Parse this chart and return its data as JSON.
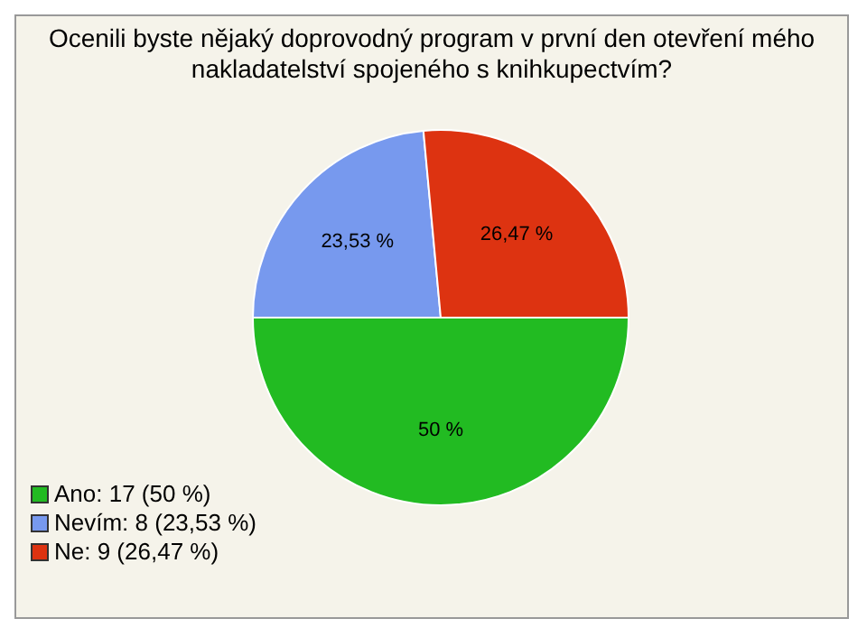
{
  "chart_data": {
    "type": "pie",
    "title": "Ocenili byste nějaký doprovodný program v první den otevření mého nakladatelství spojeného s knihkupectvím?",
    "categories": [
      "Ano: 17 (50 %)",
      "Nevím: 8 (23,53 %)",
      "Ne: 9 (26,47 %)"
    ],
    "values": [
      50,
      23.53,
      26.47
    ],
    "value_labels": [
      "50 %",
      "23,53 %",
      "26,47 %"
    ],
    "colors": [
      "#22bb22",
      "#7799ee",
      "#dd3311"
    ],
    "legend": "bottom left"
  }
}
